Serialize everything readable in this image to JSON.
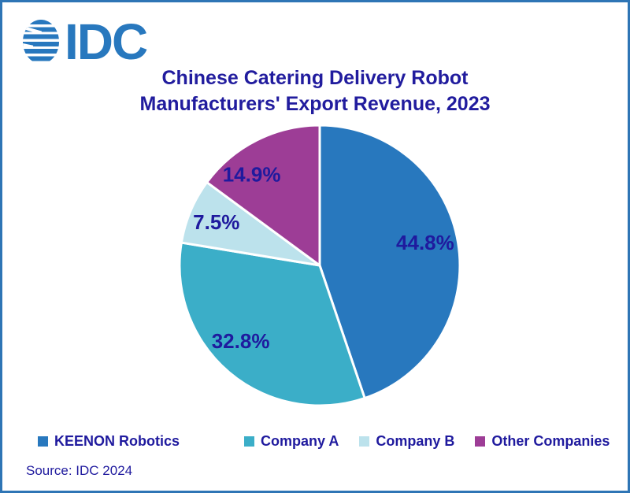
{
  "frame": {
    "border_color": "#2E75B5",
    "background": "#FFFFFF"
  },
  "logo": {
    "text": "IDC",
    "color": "#2878BE"
  },
  "title": {
    "line1": "Chinese Catering Delivery Robot",
    "line2": "Manufacturers' Export Revenue, 2023",
    "color": "#211C9E"
  },
  "chart_data": {
    "type": "pie",
    "title": "Chinese Catering Delivery Robot Manufacturers' Export Revenue, 2023",
    "units": "percent",
    "start_angle_deg": 0,
    "direction": "clockwise",
    "slices": [
      {
        "label": "KEENON Robotics",
        "value": 44.8,
        "display_label": "44.8%",
        "color": "#2878BE"
      },
      {
        "label": "Company A",
        "value": 32.8,
        "display_label": "32.8%",
        "color": "#3BAEC8"
      },
      {
        "label": "Company B",
        "value": 7.5,
        "display_label": "7.5%",
        "color": "#BCE2EC"
      },
      {
        "label": "Other Companies",
        "value": 14.9,
        "display_label": "14.9%",
        "color": "#9D3D96"
      }
    ],
    "slice_label_color": "#1F1A9E",
    "slice_border_color": "#FFFFFF",
    "legend_position": "bottom"
  },
  "legend": {
    "text_color": "#1F1A9E"
  },
  "source": {
    "text": "Source: IDC 2024",
    "color": "#1F1A9E"
  }
}
